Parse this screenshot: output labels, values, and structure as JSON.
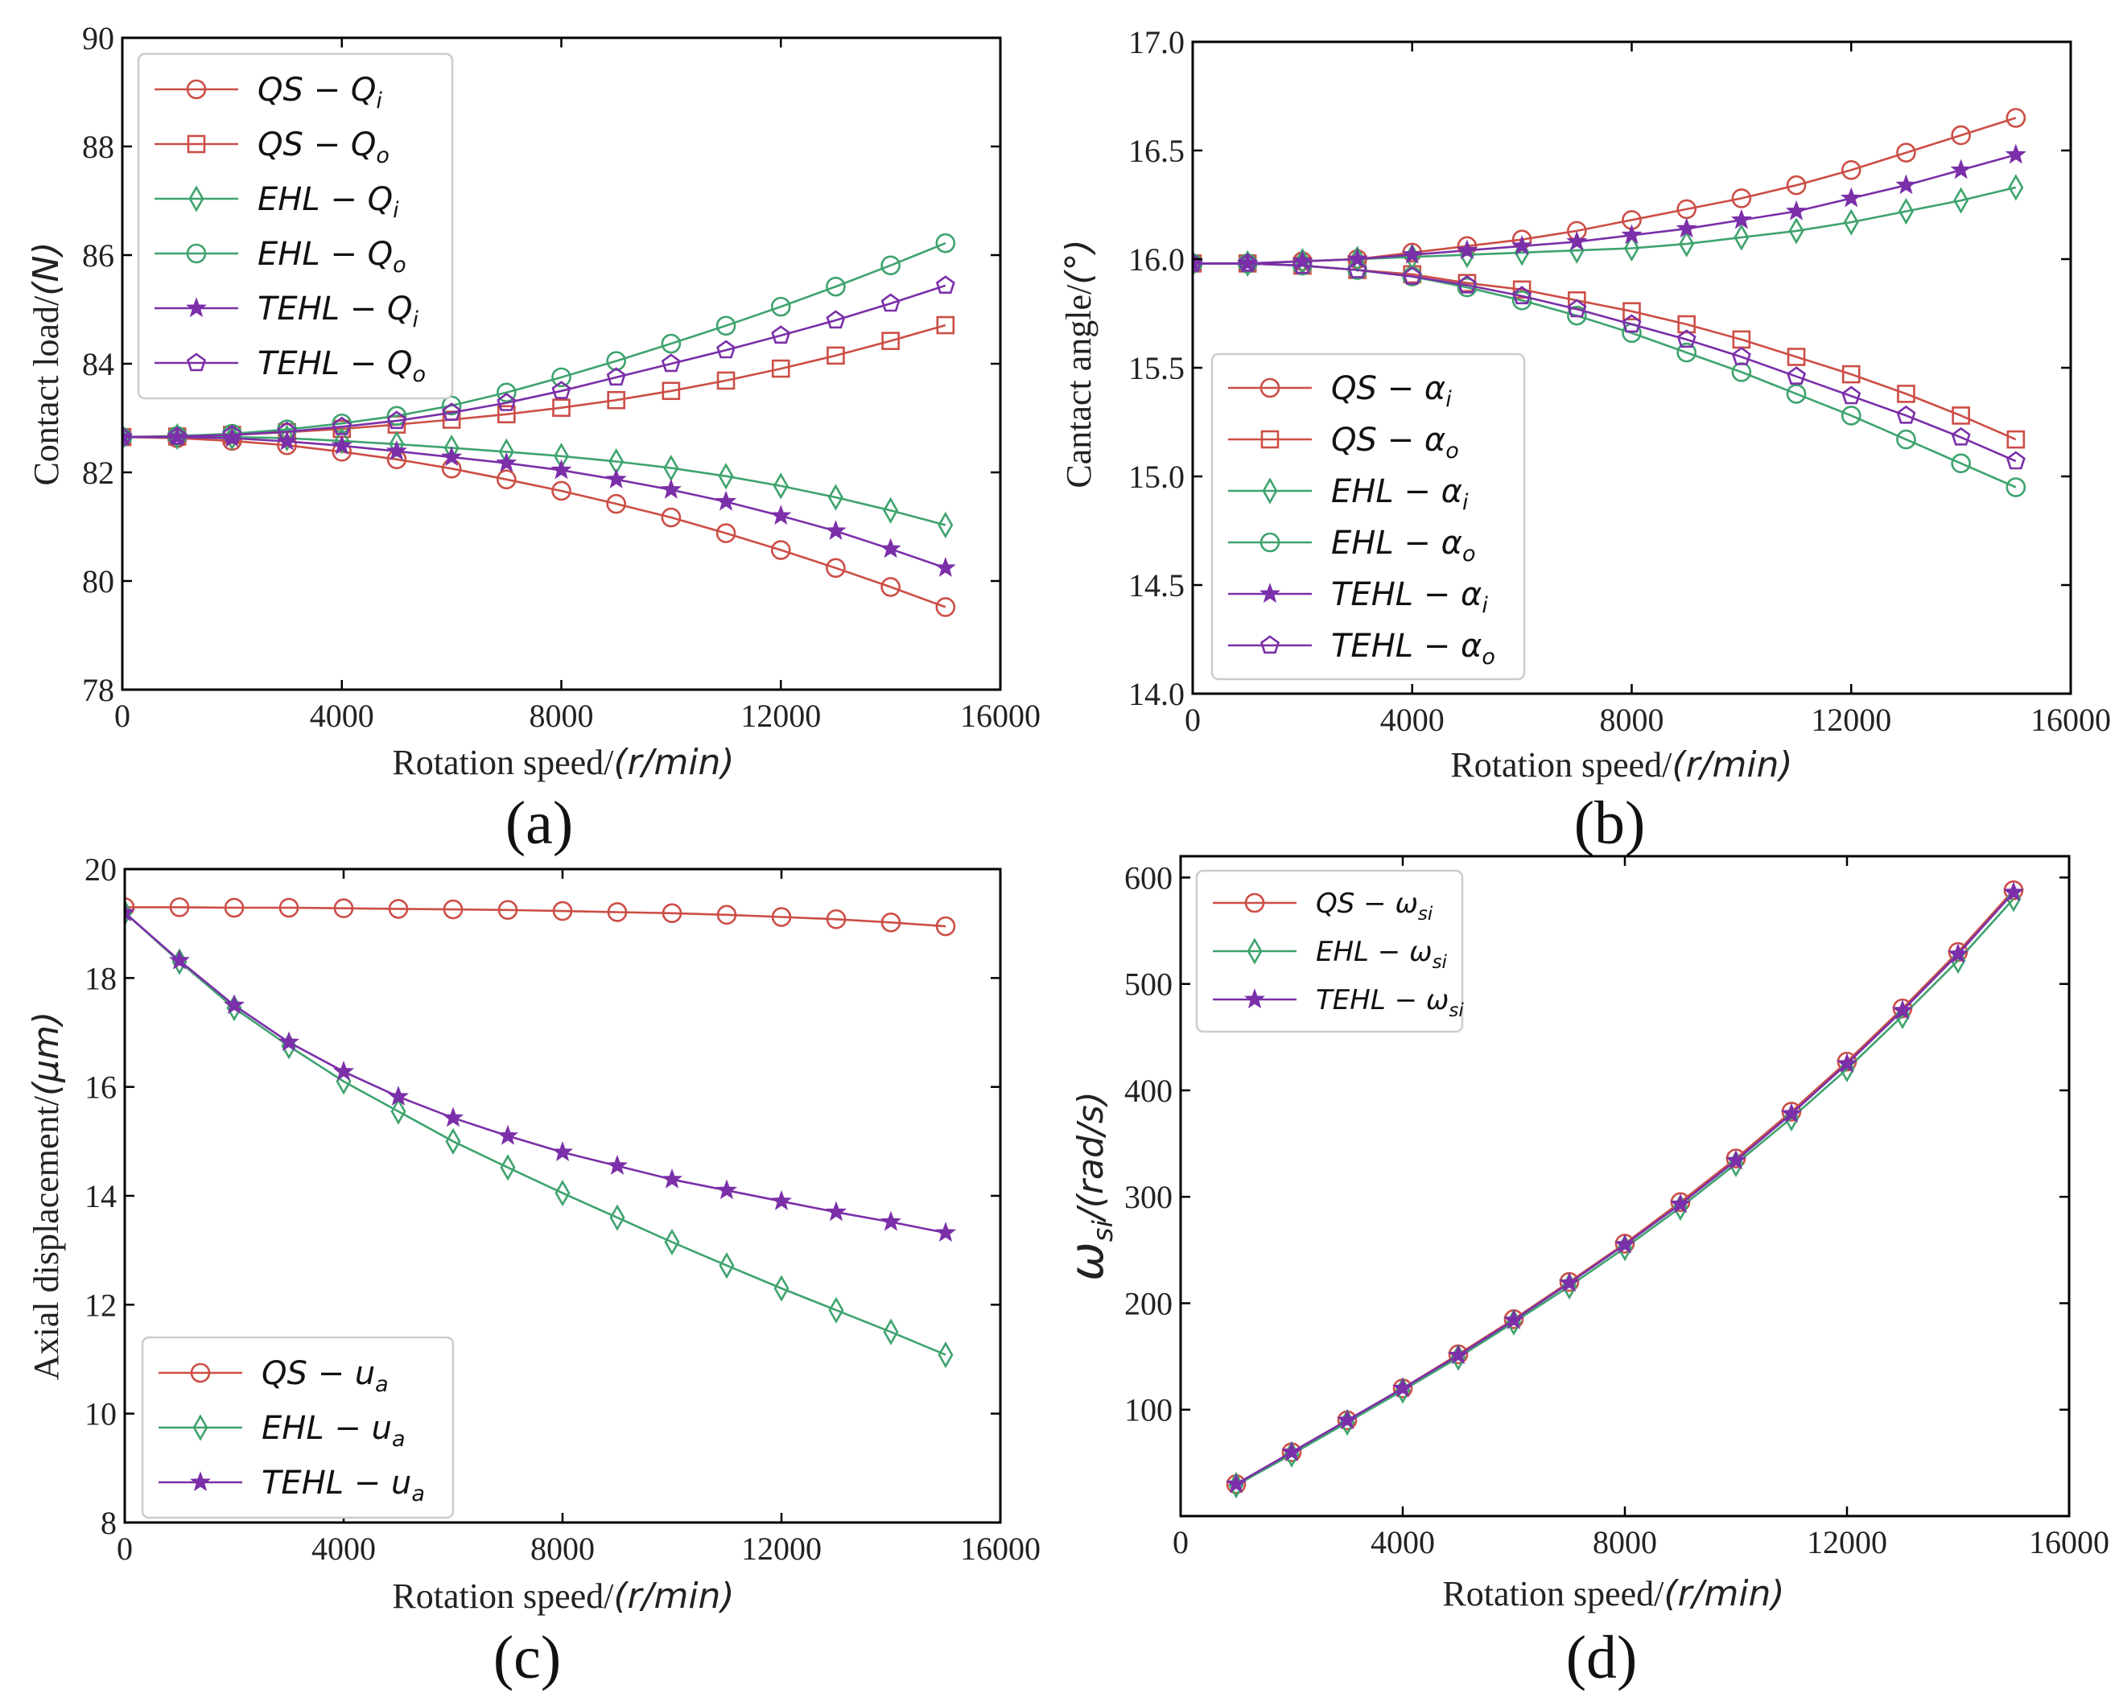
{
  "figure": {
    "panel_labels": [
      "(a)",
      "(b)",
      "(c)",
      "(d)"
    ],
    "colors": {
      "QS": "#cc4e46",
      "EHL": "#3ea36e",
      "TEHL": "#7b2fa8"
    }
  },
  "chart_data": [
    {
      "type": "line",
      "panel": "(a)",
      "xlabel": "Rotation speed/",
      "xlabel_unit": "(r/min)",
      "ylabel": "Contact load/",
      "ylabel_unit": "(N)",
      "xlim": [
        0,
        16000
      ],
      "ylim": [
        78,
        90
      ],
      "xticks": [
        0,
        4000,
        8000,
        12000,
        16000
      ],
      "yticks": [
        78,
        80,
        82,
        84,
        86,
        88,
        90
      ],
      "legend_position": "upper-left",
      "x": [
        0,
        1000,
        2000,
        3000,
        4000,
        5000,
        6000,
        7000,
        8000,
        9000,
        10000,
        11000,
        12000,
        13000,
        14000,
        15000
      ],
      "series": [
        {
          "name": "QS − Qi",
          "base": "QS",
          "sym": "Q",
          "sub": "i",
          "color": "#cc4e46",
          "marker": "circle",
          "values": [
            82.65,
            82.63,
            82.58,
            82.5,
            82.38,
            82.24,
            82.07,
            81.87,
            81.66,
            81.42,
            81.17,
            80.88,
            80.57,
            80.24,
            79.89,
            79.52
          ]
        },
        {
          "name": "QS − Qo",
          "base": "QS",
          "sym": "Q",
          "sub": "o",
          "color": "#cc4e46",
          "marker": "square",
          "values": [
            82.65,
            82.66,
            82.69,
            82.74,
            82.8,
            82.88,
            82.97,
            83.07,
            83.19,
            83.33,
            83.5,
            83.69,
            83.91,
            84.15,
            84.42,
            84.71
          ]
        },
        {
          "name": "EHL − Qi",
          "base": "EHL",
          "sym": "Q",
          "sub": "i",
          "color": "#3ea36e",
          "marker": "diamond",
          "values": [
            82.65,
            82.66,
            82.65,
            82.63,
            82.58,
            82.52,
            82.45,
            82.38,
            82.3,
            82.2,
            82.08,
            81.93,
            81.75,
            81.54,
            81.3,
            81.03
          ]
        },
        {
          "name": "EHL − Qo",
          "base": "EHL",
          "sym": "Q",
          "sub": "o",
          "color": "#3ea36e",
          "marker": "circle",
          "values": [
            82.65,
            82.67,
            82.71,
            82.79,
            82.9,
            83.04,
            83.23,
            83.47,
            83.75,
            84.05,
            84.37,
            84.7,
            85.05,
            85.42,
            85.81,
            86.22
          ]
        },
        {
          "name": "TEHL − Qi",
          "base": "TEHL",
          "sym": "Q",
          "sub": "i",
          "color": "#7b2fa8",
          "marker": "star",
          "values": [
            82.65,
            82.65,
            82.63,
            82.57,
            82.49,
            82.39,
            82.28,
            82.17,
            82.04,
            81.87,
            81.68,
            81.46,
            81.2,
            80.92,
            80.59,
            80.24
          ]
        },
        {
          "name": "TEHL − Qo",
          "base": "TEHL",
          "sym": "Q",
          "sub": "o",
          "color": "#7b2fa8",
          "marker": "pentagon",
          "values": [
            82.65,
            82.66,
            82.69,
            82.75,
            82.84,
            82.95,
            83.1,
            83.28,
            83.5,
            83.75,
            84.0,
            84.25,
            84.52,
            84.8,
            85.11,
            85.44
          ]
        }
      ]
    },
    {
      "type": "line",
      "panel": "(b)",
      "xlabel": "Rotation speed/",
      "xlabel_unit": "(r/min)",
      "ylabel": "Cantact angle/",
      "ylabel_unit": "(°)",
      "xlim": [
        0,
        16000
      ],
      "ylim": [
        14.0,
        17.0
      ],
      "xticks": [
        0,
        4000,
        8000,
        12000,
        16000
      ],
      "yticks": [
        14.0,
        14.5,
        15.0,
        15.5,
        16.0,
        16.5,
        17.0
      ],
      "ytick_decimals": 1,
      "legend_position": "lower-left",
      "x": [
        0,
        1000,
        2000,
        3000,
        4000,
        5000,
        6000,
        7000,
        8000,
        9000,
        10000,
        11000,
        12000,
        13000,
        14000,
        15000
      ],
      "series": [
        {
          "name": "QS − αi",
          "base": "QS",
          "sym": "α",
          "sub": "i",
          "color": "#cc4e46",
          "marker": "circle",
          "values": [
            15.98,
            15.98,
            15.99,
            16.0,
            16.03,
            16.06,
            16.09,
            16.13,
            16.18,
            16.23,
            16.28,
            16.34,
            16.41,
            16.49,
            16.57,
            16.65
          ]
        },
        {
          "name": "QS − αo",
          "base": "QS",
          "sym": "α",
          "sub": "o",
          "color": "#cc4e46",
          "marker": "square",
          "values": [
            15.98,
            15.98,
            15.97,
            15.95,
            15.93,
            15.89,
            15.86,
            15.81,
            15.76,
            15.7,
            15.63,
            15.55,
            15.47,
            15.38,
            15.28,
            15.17
          ]
        },
        {
          "name": "EHL − αi",
          "base": "EHL",
          "sym": "α",
          "sub": "i",
          "color": "#3ea36e",
          "marker": "diamond",
          "values": [
            15.98,
            15.98,
            15.99,
            16.0,
            16.01,
            16.02,
            16.03,
            16.04,
            16.05,
            16.07,
            16.1,
            16.13,
            16.17,
            16.22,
            16.27,
            16.33
          ]
        },
        {
          "name": "EHL − αo",
          "base": "EHL",
          "sym": "α",
          "sub": "o",
          "color": "#3ea36e",
          "marker": "circle",
          "values": [
            15.98,
            15.98,
            15.97,
            15.95,
            15.92,
            15.87,
            15.81,
            15.74,
            15.66,
            15.57,
            15.48,
            15.38,
            15.28,
            15.17,
            15.06,
            14.95
          ]
        },
        {
          "name": "TEHL − αi",
          "base": "TEHL",
          "sym": "α",
          "sub": "i",
          "color": "#7b2fa8",
          "marker": "star",
          "values": [
            15.98,
            15.98,
            15.99,
            16.0,
            16.02,
            16.04,
            16.06,
            16.08,
            16.11,
            16.14,
            16.18,
            16.22,
            16.28,
            16.34,
            16.41,
            16.48
          ]
        },
        {
          "name": "TEHL − αo",
          "base": "TEHL",
          "sym": "α",
          "sub": "o",
          "color": "#7b2fa8",
          "marker": "pentagon",
          "values": [
            15.98,
            15.98,
            15.97,
            15.95,
            15.92,
            15.88,
            15.83,
            15.77,
            15.7,
            15.63,
            15.55,
            15.46,
            15.37,
            15.28,
            15.18,
            15.07
          ]
        }
      ]
    },
    {
      "type": "line",
      "panel": "(c)",
      "xlabel": "Rotation speed/",
      "xlabel_unit": "(r/min)",
      "ylabel": "Axial displacement/",
      "ylabel_unit": "(μm)",
      "xlim": [
        0,
        16000
      ],
      "ylim": [
        8,
        20
      ],
      "xticks": [
        0,
        4000,
        8000,
        12000,
        16000
      ],
      "yticks": [
        8,
        10,
        12,
        14,
        16,
        18,
        20
      ],
      "legend_position": "lower-left",
      "x": [
        0,
        1000,
        2000,
        3000,
        4000,
        5000,
        6000,
        7000,
        8000,
        9000,
        10000,
        11000,
        12000,
        13000,
        14000,
        15000
      ],
      "series": [
        {
          "name": "QS − ua",
          "base": "QS",
          "sym": "u",
          "sub": "a",
          "color": "#cc4e46",
          "marker": "circle",
          "values": [
            19.3,
            19.3,
            19.29,
            19.29,
            19.28,
            19.27,
            19.26,
            19.25,
            19.23,
            19.21,
            19.19,
            19.16,
            19.12,
            19.08,
            19.02,
            18.95
          ]
        },
        {
          "name": "EHL − ua",
          "base": "EHL",
          "sym": "u",
          "sub": "a",
          "color": "#3ea36e",
          "marker": "diamond",
          "values": [
            19.2,
            18.3,
            17.45,
            16.75,
            16.1,
            15.55,
            15.0,
            14.52,
            14.05,
            13.6,
            13.15,
            12.72,
            12.3,
            11.9,
            11.5,
            11.08
          ]
        },
        {
          "name": "TEHL − ua",
          "base": "TEHL",
          "sym": "u",
          "sub": "a",
          "color": "#7b2fa8",
          "marker": "star",
          "values": [
            19.2,
            18.32,
            17.5,
            16.82,
            16.28,
            15.82,
            15.43,
            15.1,
            14.8,
            14.55,
            14.3,
            14.1,
            13.9,
            13.7,
            13.52,
            13.32
          ]
        }
      ]
    },
    {
      "type": "line",
      "panel": "(d)",
      "xlabel": "Rotation speed/",
      "xlabel_unit": "(r/min)",
      "ylabel_sym": "ω",
      "ylabel_sub": "si",
      "ylabel_unit": "/(rad/s)",
      "xlim": [
        0,
        16000
      ],
      "ylim": [
        0,
        620
      ],
      "xticks": [
        0,
        4000,
        8000,
        12000,
        16000
      ],
      "yticks": [
        100,
        200,
        300,
        400,
        500,
        600
      ],
      "legend_position": "upper-left",
      "x": [
        1000,
        2000,
        3000,
        4000,
        5000,
        6000,
        7000,
        8000,
        9000,
        10000,
        11000,
        12000,
        13000,
        14000,
        15000
      ],
      "series": [
        {
          "name": "QS − ωsi",
          "base": "QS",
          "sym": "ω",
          "sub": "si",
          "color": "#cc4e46",
          "marker": "circle",
          "values": [
            30,
            60,
            90,
            120,
            152,
            185,
            220,
            256,
            295,
            336,
            380,
            427,
            477,
            530,
            588
          ]
        },
        {
          "name": "EHL − ωsi",
          "base": "EHL",
          "sym": "ω",
          "sub": "si",
          "color": "#3ea36e",
          "marker": "diamond",
          "values": [
            29,
            58,
            88,
            118,
            149,
            182,
            216,
            252,
            290,
            331,
            374,
            420,
            470,
            522,
            580
          ]
        },
        {
          "name": "TEHL − ωsi",
          "base": "TEHL",
          "sym": "ω",
          "sub": "si",
          "color": "#7b2fa8",
          "marker": "star",
          "values": [
            30,
            60,
            90,
            120,
            151,
            184,
            219,
            255,
            293,
            334,
            378,
            425,
            475,
            528,
            586
          ]
        }
      ]
    }
  ]
}
